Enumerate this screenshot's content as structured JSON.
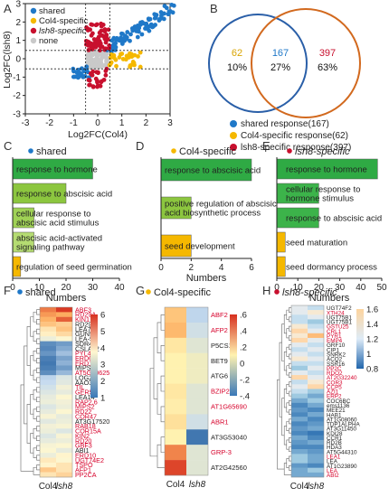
{
  "panel_labels": [
    "A",
    "B",
    "C",
    "D",
    "E",
    "F",
    "G",
    "H"
  ],
  "panelA": {
    "legend": [
      {
        "label": "shared",
        "color": "#1f78c8"
      },
      {
        "label": "Col4-specific",
        "color": "#f5b800"
      },
      {
        "label": "lsh8-specific",
        "color": "#c8102e"
      },
      {
        "label": "none",
        "color": "#c9c9c9"
      }
    ],
    "xlabel": "Log2FC(Col4)",
    "ylabel": "Log2FC(lsh8)",
    "xticks": [
      "-3",
      "-2",
      "-1",
      "0",
      "1",
      "2",
      "3"
    ],
    "yticks": [
      "3",
      "2",
      "1",
      "0",
      "-1",
      "-2",
      "-3"
    ]
  },
  "panelB": {
    "left_count": "62",
    "left_pct": "10%",
    "mid_count": "167",
    "mid_pct": "27%",
    "right_count": "397",
    "right_pct": "63%",
    "legend": [
      {
        "label": "shared response(167)",
        "color": "#1f78c8"
      },
      {
        "label": "Col4-specific response(62)",
        "color": "#f5b800"
      },
      {
        "label": "lsh8-specific response(397)",
        "color": "#c8102e"
      }
    ]
  },
  "chart_data": [
    {
      "type": "bar",
      "title": "shared",
      "xlabel": "Numbers",
      "xlim": [
        0,
        40
      ],
      "categories": [
        "response to hormone",
        "response to abscisic acid",
        "cellular response to abscisic acid stimulus",
        "abscisic acid-activated signaling pathway",
        "regulation of seed germination"
      ],
      "values": [
        30,
        20,
        8,
        8,
        3
      ]
    },
    {
      "type": "bar",
      "title": "Col4-specific",
      "xlabel": "Numbers",
      "xlim": [
        0,
        6
      ],
      "categories": [
        "response to abscisic acid",
        "positive regulation of abscisic acid biosynthetic process",
        "seed development"
      ],
      "values": [
        6,
        2,
        2
      ]
    },
    {
      "type": "bar",
      "title": "lsh8-specific",
      "xlabel": "Numbers",
      "xlim": [
        0,
        50
      ],
      "categories": [
        "response to hormone",
        "cellular response to hormone stimulus",
        "response to abscisic acid",
        "seed maturation",
        "seed dormancy process"
      ],
      "values": [
        48,
        20,
        20,
        4,
        4
      ]
    },
    {
      "type": "heatmap",
      "title": "shared",
      "columns": [
        "Col4",
        "lsh8"
      ],
      "colorbar_ticks": [
        "6",
        "5",
        "4",
        "3",
        "2",
        "1"
      ],
      "rows": [
        "ABF3",
        "RD29A",
        "KIN1",
        "RD29B",
        "LEA7",
        "GUN5",
        "LEA-5",
        "SDR4",
        "CSLA02",
        "PYL4",
        "ERD6",
        "ERD14",
        "MIPS1",
        "AT5G10625",
        "LOG2",
        "AAO3",
        "TIL",
        "GER5",
        "LEA14",
        "RAP2.6",
        "MIPS2",
        "RD22",
        "COR47",
        "AT3G17520",
        "RAB18",
        "COR15A",
        "KIN2",
        "RD20",
        "GBF3",
        "ABI1",
        "ERD10",
        "UGT74E2",
        "TSPO",
        "AFP1",
        "PP2CA"
      ],
      "colors": [
        "r",
        "r",
        "r",
        "k",
        "k",
        "k",
        "k",
        "k",
        "k",
        "r",
        "r",
        "r",
        "k",
        "r",
        "k",
        "k",
        "r",
        "r",
        "k",
        "r",
        "r",
        "r",
        "r",
        "k",
        "r",
        "r",
        "r",
        "r",
        "r",
        "k",
        "r",
        "r",
        "r",
        "r",
        "r"
      ],
      "values": [
        [
          5.5,
          6.2
        ],
        [
          5.2,
          5.0
        ],
        [
          4.9,
          5.8
        ],
        [
          4.6,
          4.4
        ],
        [
          4.0,
          4.6
        ],
        [
          3.8,
          4.2
        ],
        [
          3.3,
          3.6
        ],
        [
          1.5,
          1.7
        ],
        [
          1.4,
          1.9
        ],
        [
          1.6,
          2.2
        ],
        [
          1.3,
          1.8
        ],
        [
          1.2,
          2.0
        ],
        [
          1.3,
          1.7
        ],
        [
          1.5,
          2.1
        ],
        [
          2.5,
          3.0
        ],
        [
          2.6,
          3.1
        ],
        [
          2.8,
          3.4
        ],
        [
          3.0,
          3.2
        ],
        [
          3.2,
          3.6
        ],
        [
          3.3,
          3.4
        ],
        [
          3.0,
          3.3
        ],
        [
          3.2,
          3.6
        ],
        [
          3.5,
          3.2
        ],
        [
          3.1,
          3.3
        ],
        [
          3.4,
          3.5
        ],
        [
          3.3,
          3.0
        ],
        [
          3.0,
          3.5
        ],
        [
          3.2,
          3.3
        ],
        [
          3.5,
          3.6
        ],
        [
          3.6,
          3.2
        ],
        [
          3.3,
          3.7
        ],
        [
          3.9,
          3.6
        ],
        [
          3.7,
          4.0
        ],
        [
          4.5,
          4.0
        ],
        [
          4.0,
          4.3
        ]
      ]
    },
    {
      "type": "heatmap",
      "title": "Col4-specific",
      "columns": [
        "Col4",
        "lsh8"
      ],
      "colorbar_ticks": [
        ".6",
        ".4",
        ".2",
        "0",
        "-.2",
        "-.4"
      ],
      "rows": [
        "ABF2",
        "AFP2",
        "P5CS1",
        "BET9",
        "ATG6",
        "BZIP25",
        "AT1G65690",
        "ABR1",
        "AT3G53040",
        "GRP-3",
        "AT2G42560"
      ],
      "colors": [
        "r",
        "r",
        "k",
        "k",
        "k",
        "r",
        "r",
        "r",
        "k",
        "r",
        "k"
      ],
      "values": [
        [
          0.3,
          -0.1
        ],
        [
          0.35,
          -0.05
        ],
        [
          0.15,
          0.0
        ],
        [
          0.1,
          0.05
        ],
        [
          0.1,
          0.05
        ],
        [
          0.15,
          0.0
        ],
        [
          0.12,
          0.0
        ],
        [
          0.18,
          -0.05
        ],
        [
          0.1,
          -0.45
        ],
        [
          0.5,
          0.0
        ],
        [
          0.65,
          0.0
        ]
      ]
    },
    {
      "type": "heatmap",
      "title": "lsh8-specific",
      "columns": [
        "Col4",
        "lsh8"
      ],
      "colorbar_ticks": [
        "1.6",
        "1.4",
        "1.2",
        "1",
        "0.8"
      ],
      "rows": [
        "UGT74F2",
        "XTH24",
        "UGT75B1",
        "UGT75B1",
        "GSTU25",
        "CRL1",
        "PYR1",
        "EMP4",
        "GRF10",
        "CIP1",
        "SNRK2",
        "ACQ2",
        "SSR16",
        "PP2C",
        "RDO2",
        "AT2G32240",
        "COR3",
        "CCP5",
        "AZI1",
        "ERP2",
        "COC6BC",
        "ems1136",
        "MEE21",
        "HAB1",
        "AT1G08060",
        "TDP1ALPHA",
        "AT3G11450",
        "KDI28",
        "CCR1",
        "RD2B",
        "HDA3",
        "AT5G44310",
        "LEA1",
        "LEA",
        "AT1G23890",
        "LEA",
        "ABI2"
      ],
      "colors": [
        "k",
        "r",
        "k",
        "k",
        "r",
        "r",
        "r",
        "r",
        "k",
        "k",
        "k",
        "k",
        "k",
        "r",
        "r",
        "r",
        "r",
        "r",
        "r",
        "r",
        "k",
        "k",
        "k",
        "k",
        "k",
        "k",
        "k",
        "k",
        "k",
        "k",
        "k",
        "k",
        "r",
        "k",
        "k",
        "r",
        "r"
      ],
      "values": [
        [
          1.3,
          1.2
        ],
        [
          1.3,
          1.4
        ],
        [
          1.2,
          1.3
        ],
        [
          1.2,
          1.1
        ],
        [
          1.4,
          1.2
        ],
        [
          1.5,
          1.3
        ],
        [
          1.4,
          1.6
        ],
        [
          1.5,
          1.3
        ],
        [
          1.3,
          1.2
        ],
        [
          1.2,
          1.3
        ],
        [
          1.3,
          1.2
        ],
        [
          1.4,
          1.3
        ],
        [
          1.2,
          1.2
        ],
        [
          1.1,
          1.3
        ],
        [
          1.3,
          1.2
        ],
        [
          1.5,
          1.3
        ],
        [
          1.2,
          1.4
        ],
        [
          1.3,
          1.5
        ],
        [
          1.2,
          1.1
        ],
        [
          1.1,
          1.0
        ],
        [
          1.0,
          1.1
        ],
        [
          0.9,
          1.0
        ],
        [
          0.95,
          0.9
        ],
        [
          0.9,
          1.0
        ],
        [
          1.0,
          0.9
        ],
        [
          0.9,
          0.95
        ],
        [
          0.95,
          1.0
        ],
        [
          0.9,
          0.85
        ],
        [
          1.0,
          0.9
        ],
        [
          0.95,
          1.0
        ],
        [
          0.9,
          0.9
        ],
        [
          1.0,
          0.95
        ],
        [
          1.1,
          1.0
        ],
        [
          1.1,
          1.0
        ],
        [
          0.95,
          0.9
        ],
        [
          1.0,
          1.1
        ],
        [
          1.0,
          1.0
        ]
      ]
    }
  ]
}
